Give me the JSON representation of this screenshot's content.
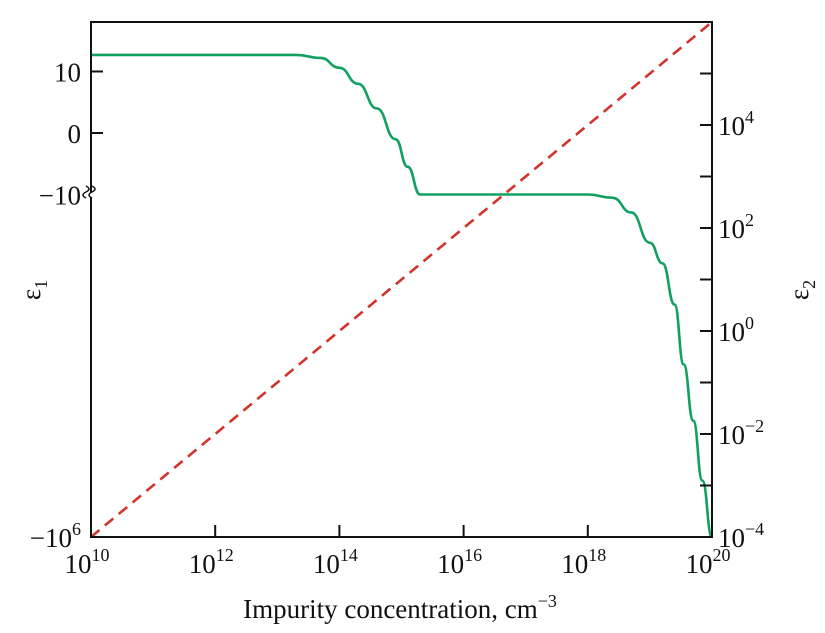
{
  "chart_data": {
    "type": "line",
    "title": "",
    "xlabel": {
      "text": "Impurity concentration, cm",
      "exp": "−3"
    },
    "ylabel_left": {
      "text": "ε",
      "sub": "1"
    },
    "ylabel_right": {
      "text": "ε",
      "sub": "2"
    },
    "x_scale": "log",
    "xlim": [
      10000000000.0,
      1e+20
    ],
    "x_ticks": [
      {
        "value": 10000000000.0,
        "base": "10",
        "exp": "10"
      },
      {
        "value": 1000000000000.0,
        "base": "10",
        "exp": "12"
      },
      {
        "value": 100000000000000.0,
        "base": "10",
        "exp": "14"
      },
      {
        "value": 1e+16,
        "base": "10",
        "exp": "16"
      },
      {
        "value": 1e+18,
        "base": "10",
        "exp": "18"
      },
      {
        "value": 1e+20,
        "base": "10",
        "exp": "20"
      }
    ],
    "y_left": {
      "scale": "linear above -10, broken, log of |ε1| below -10",
      "ylim": [
        -1000000.0,
        15
      ],
      "break_at": -10,
      "ticks": [
        {
          "value": 10,
          "base": "10",
          "exp": ""
        },
        {
          "value": 0,
          "base": "0",
          "exp": ""
        },
        {
          "value": -10,
          "base": "−10",
          "exp": ""
        },
        {
          "value": -1000000.0,
          "base": "−10",
          "exp": "6"
        }
      ]
    },
    "y_right": {
      "scale": "log",
      "ylim": [
        0.0001,
        1000000.0
      ],
      "ticks": [
        {
          "value": 0.0001,
          "base": "10",
          "exp": "−4"
        },
        {
          "value": 0.01,
          "base": "10",
          "exp": "−2"
        },
        {
          "value": 1,
          "base": "10",
          "exp": "0"
        },
        {
          "value": 100.0,
          "base": "10",
          "exp": "2"
        },
        {
          "value": 10000.0,
          "base": "10",
          "exp": "4"
        }
      ],
      "minor_ticks": [
        0.001,
        0.1,
        10.0,
        1000.0,
        100000.0
      ]
    },
    "grid": false,
    "series": [
      {
        "axis": "left",
        "color": "#12a060",
        "style": "solid",
        "x": [
          10000000000.0,
          20000000000000.0,
          50000000000000.0,
          100000000000000.0,
          200000000000000.0,
          400000000000000.0,
          800000000000000.0,
          1260000000000000.0,
          2000000000000000.0,
          1e+18,
          2.5e+18,
          5e+18,
          1e+19,
          1.6e+19,
          2.5e+19,
          3.5e+19,
          5e+19,
          7e+19,
          1e+20
        ],
        "y": [
          12.7,
          12.7,
          12.2,
          10.6,
          8,
          4,
          -1,
          -5.5,
          -10,
          -10,
          -11,
          -18,
          -50,
          -100,
          -400,
          -3000,
          -20000,
          -150000,
          -1000000
        ]
      },
      {
        "axis": "right",
        "color": "#d0342c",
        "style": "dashed",
        "x": [
          10000000000.0,
          1e+20
        ],
        "y": [
          0.0001,
          1000000.0
        ]
      }
    ]
  }
}
